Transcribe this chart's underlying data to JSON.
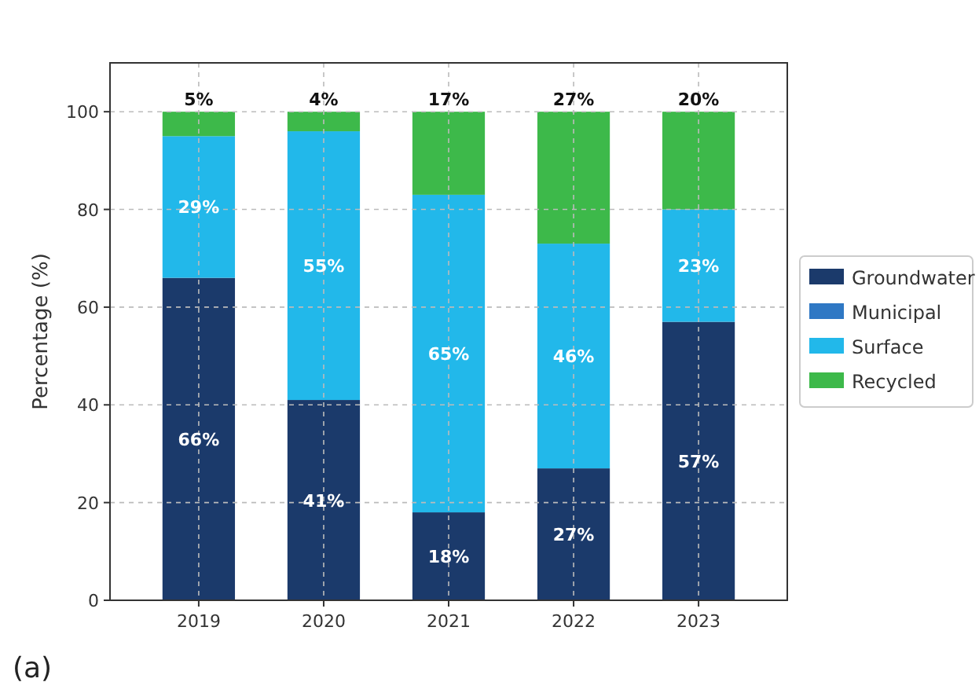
{
  "chart_data": {
    "type": "bar",
    "stacked": true,
    "ylabel": "Percentage (%)",
    "categories": [
      "2019",
      "2020",
      "2021",
      "2022",
      "2023"
    ],
    "series": [
      {
        "name": "Groundwater",
        "color": "#1b3a6b",
        "values": [
          66,
          41,
          18,
          27,
          57
        ],
        "value_labels": [
          "66%",
          "41%",
          "18%",
          "27%",
          "57%"
        ]
      },
      {
        "name": "Municipal",
        "color": "#2f78c4",
        "values": [
          0,
          0,
          0,
          0,
          0
        ]
      },
      {
        "name": "Surface",
        "color": "#22b8ea",
        "values": [
          29,
          55,
          65,
          46,
          23
        ],
        "value_labels": [
          "29%",
          "55%",
          "65%",
          "46%",
          "23%"
        ]
      },
      {
        "name": "Recycled",
        "color": "#3db94a",
        "values": [
          5,
          4,
          17,
          27,
          20
        ],
        "value_labels": [
          "5%",
          "4%",
          "17%",
          "27%",
          "20%"
        ]
      }
    ],
    "ylim": [
      0,
      110
    ],
    "yticks": [
      0,
      20,
      40,
      60,
      80,
      100
    ],
    "grid": true,
    "legend": "right",
    "annotations": [
      "(a)"
    ]
  }
}
